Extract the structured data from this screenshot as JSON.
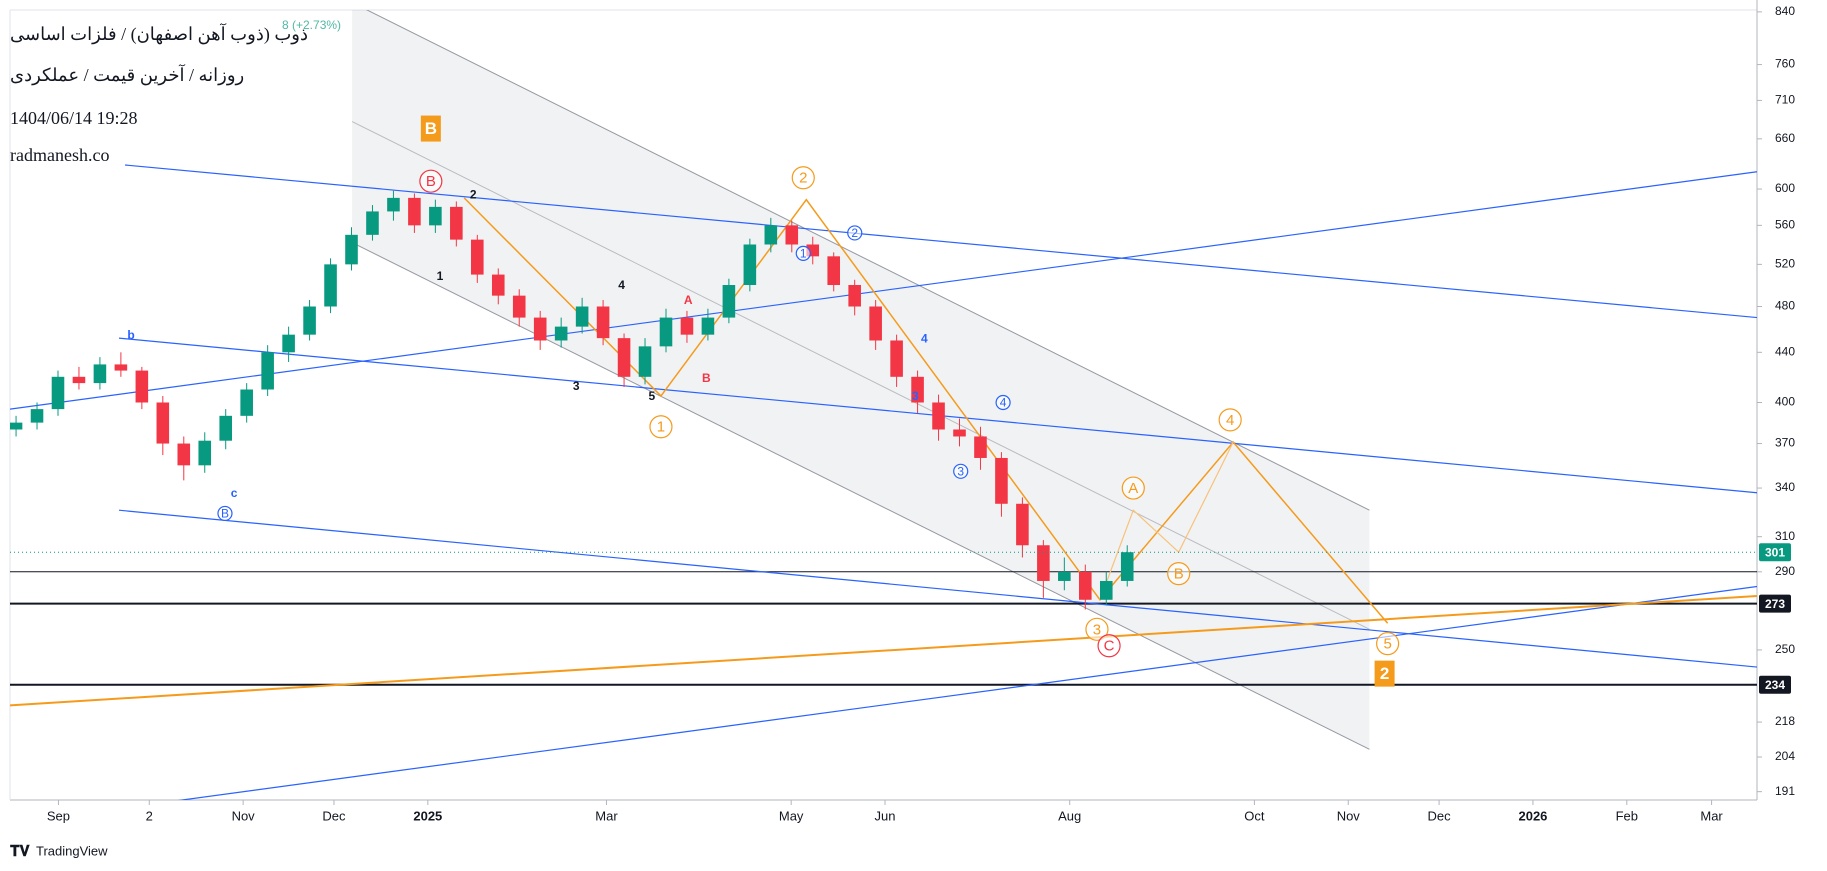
{
  "chart_data": {
    "type": "candlestick",
    "title": "ذوب (ذوب آهن اصفهان) / فلزات اساسی",
    "subtitle": "روزانه / آخرین قیمت / عملکردی",
    "timestamp": "1404/06/14 19:28",
    "watermark": "radmanesh.co",
    "change": "8 (+2.73%)",
    "brand": "TradingView",
    "log_scale": true,
    "grid": false,
    "ylim": [
      188,
      843
    ],
    "yticks": [
      191,
      204,
      218,
      250,
      290,
      310,
      340,
      370,
      400,
      440,
      480,
      520,
      560,
      600,
      660,
      710,
      760,
      840
    ],
    "xlim": [
      "2024-08-16",
      "2026-03-16"
    ],
    "xticks": [
      {
        "value": "2024-09",
        "label": "Sep"
      },
      {
        "value": "2024-10",
        "label": "2"
      },
      {
        "value": "2024-11",
        "label": "Nov"
      },
      {
        "value": "2024-12",
        "label": "Dec"
      },
      {
        "value": "2025-01",
        "label": "2025"
      },
      {
        "value": "2025-03",
        "label": "Mar"
      },
      {
        "value": "2025-05",
        "label": "May"
      },
      {
        "value": "2025-06",
        "label": "Jun"
      },
      {
        "value": "2025-08",
        "label": "Aug"
      },
      {
        "value": "2025-10",
        "label": "Oct"
      },
      {
        "value": "2025-11",
        "label": "Nov"
      },
      {
        "value": "2025-12",
        "label": "Dec"
      },
      {
        "value": "2026-01",
        "label": "2026"
      },
      {
        "value": "2026-02",
        "label": "Feb"
      },
      {
        "value": "2026-03",
        "label": "Mar"
      }
    ],
    "up_color": "#089981",
    "down_color": "#f23645",
    "candles": {
      "start": "2024-08-18",
      "end": "2025-08-20",
      "open": [
        380,
        385,
        395,
        420,
        415,
        430,
        425,
        400,
        370,
        355,
        372,
        390,
        410,
        440,
        455,
        480,
        520,
        550,
        575,
        590,
        560,
        580,
        545,
        510,
        490,
        470,
        450,
        462,
        480,
        452,
        420,
        445,
        470,
        455,
        470,
        500,
        540,
        560,
        540,
        528,
        500,
        480,
        450,
        420,
        400,
        380,
        375,
        360,
        330,
        305,
        285,
        290,
        275,
        285
      ],
      "high": [
        390,
        400,
        425,
        428,
        436,
        440,
        428,
        405,
        375,
        378,
        395,
        415,
        446,
        462,
        486,
        526,
        558,
        582,
        598,
        595,
        588,
        586,
        550,
        516,
        496,
        476,
        470,
        488,
        486,
        456,
        452,
        478,
        476,
        478,
        506,
        546,
        568,
        565,
        548,
        532,
        505,
        486,
        455,
        425,
        406,
        388,
        382,
        364,
        334,
        308,
        298,
        294,
        290,
        305
      ],
      "low": [
        375,
        380,
        390,
        410,
        410,
        420,
        395,
        362,
        345,
        350,
        366,
        385,
        405,
        432,
        450,
        474,
        514,
        544,
        565,
        552,
        552,
        538,
        502,
        482,
        462,
        442,
        444,
        456,
        446,
        412,
        414,
        440,
        448,
        450,
        465,
        494,
        532,
        532,
        520,
        494,
        472,
        442,
        412,
        392,
        372,
        368,
        352,
        322,
        298,
        276,
        280,
        270,
        272,
        282
      ],
      "close": [
        385,
        395,
        420,
        415,
        430,
        425,
        400,
        370,
        355,
        372,
        390,
        410,
        440,
        455,
        480,
        520,
        550,
        575,
        590,
        560,
        580,
        545,
        510,
        490,
        470,
        450,
        462,
        480,
        452,
        420,
        445,
        470,
        455,
        470,
        500,
        540,
        560,
        540,
        528,
        500,
        480,
        450,
        420,
        400,
        380,
        375,
        360,
        330,
        305,
        285,
        290,
        275,
        285,
        301
      ]
    },
    "marked_prices": [
      301,
      273,
      234
    ],
    "hlines": [
      290,
      273,
      234
    ],
    "trend_lines": [
      {
        "color": "#2962ff",
        "points": [
          [
            "2024-08-16",
            395
          ],
          [
            "2026-03-16",
            620
          ]
        ]
      },
      {
        "color": "#2962ff",
        "points": [
          [
            "2024-09-23",
            628
          ],
          [
            "2026-03-16",
            470
          ]
        ]
      },
      {
        "color": "#2962ff",
        "points": [
          [
            "2024-09-21",
            452
          ],
          [
            "2026-03-16",
            337
          ]
        ]
      },
      {
        "color": "#2962ff",
        "points": [
          [
            "2024-09-21",
            326
          ],
          [
            "2026-03-16",
            242
          ]
        ]
      },
      {
        "color": "#2962ff",
        "points": [
          [
            "2024-10-05",
            187
          ],
          [
            "2026-03-16",
            282
          ]
        ]
      },
      {
        "color": "#f59b1c",
        "points": [
          [
            "2024-08-16",
            225
          ],
          [
            "2026-03-16",
            277
          ]
        ]
      }
    ],
    "channel": {
      "color": "#9598a1",
      "upper": [
        [
          "2024-12-07",
          855
        ],
        [
          "2025-11-08",
          326
        ]
      ],
      "middle": [
        [
          "2024-12-07",
          682
        ],
        [
          "2025-11-08",
          260
        ]
      ],
      "lower": [
        [
          "2024-12-07",
          542
        ],
        [
          "2025-11-08",
          207
        ]
      ]
    },
    "wave_path": {
      "color": "#f59b1c",
      "points": [
        [
          "2025-01-13",
          590
        ],
        [
          "2025-03-19",
          405
        ],
        [
          "2025-05-06",
          588
        ],
        [
          "2025-08-11",
          275
        ],
        [
          "2025-09-24",
          371
        ],
        [
          "2025-11-14",
          263
        ]
      ]
    },
    "projection": {
      "color": "#f8c27a",
      "points": [
        [
          "2025-08-11",
          275
        ],
        [
          "2025-08-22",
          326
        ],
        [
          "2025-09-06",
          301
        ],
        [
          "2025-09-24",
          371
        ]
      ]
    },
    "annotations": [
      {
        "text": "B",
        "x": "2025-01-02",
        "y": 673,
        "color": "#f59b1c",
        "style": "box"
      },
      {
        "text": "2",
        "x": "2025-11-13",
        "y": 239,
        "color": "#f59b1c",
        "style": "box"
      },
      {
        "text": "1",
        "x": "2025-03-19",
        "y": 382,
        "color": "#f59b1c",
        "style": "circle"
      },
      {
        "text": "2",
        "x": "2025-05-05",
        "y": 613,
        "color": "#f59b1c",
        "style": "circle"
      },
      {
        "text": "3",
        "x": "2025-08-10",
        "y": 260,
        "color": "#f59b1c",
        "style": "circle"
      },
      {
        "text": "4",
        "x": "2025-09-23",
        "y": 387,
        "color": "#f59b1c",
        "style": "circle"
      },
      {
        "text": "5",
        "x": "2025-11-14",
        "y": 253,
        "color": "#f59b1c",
        "style": "circle"
      },
      {
        "text": "A",
        "x": "2025-08-22",
        "y": 340,
        "color": "#f59b1c",
        "style": "circle"
      },
      {
        "text": "B",
        "x": "2025-09-06",
        "y": 289,
        "color": "#f59b1c",
        "style": "circle"
      },
      {
        "text": "C",
        "x": "2025-08-14",
        "y": 252,
        "color": "#f23645",
        "style": "circle"
      },
      {
        "text": "B",
        "x": "2025-01-02",
        "y": 609,
        "color": "#f23645",
        "style": "circle"
      },
      {
        "text": "b",
        "x": "2024-09-25",
        "y": 455,
        "color": "#2962ff",
        "style": "plain"
      },
      {
        "text": "c",
        "x": "2024-10-29",
        "y": 337,
        "color": "#2962ff",
        "style": "plain"
      },
      {
        "text": "B",
        "x": "2024-10-26",
        "y": 324,
        "color": "#2962ff",
        "style": "circle"
      },
      {
        "text": "1",
        "x": "2025-05-05",
        "y": 531,
        "color": "#2962ff",
        "style": "circle"
      },
      {
        "text": "2",
        "x": "2025-05-22",
        "y": 552,
        "color": "#2962ff",
        "style": "circle"
      },
      {
        "text": "3",
        "x": "2025-06-26",
        "y": 351,
        "color": "#2962ff",
        "style": "circle"
      },
      {
        "text": "4",
        "x": "2025-07-10",
        "y": 400,
        "color": "#2962ff",
        "style": "circle"
      },
      {
        "text": "4",
        "x": "2025-06-14",
        "y": 452,
        "color": "#2962ff",
        "style": "plain"
      },
      {
        "text": "3",
        "x": "2025-06-11",
        "y": 405,
        "color": "#2962ff",
        "style": "plain"
      },
      {
        "text": "1",
        "x": "2025-01-05",
        "y": 509,
        "color": "#131722",
        "style": "plain"
      },
      {
        "text": "2",
        "x": "2025-01-16",
        "y": 594,
        "color": "#131722",
        "style": "plain"
      },
      {
        "text": "3",
        "x": "2025-02-19",
        "y": 413,
        "color": "#131722",
        "style": "plain"
      },
      {
        "text": "4",
        "x": "2025-03-06",
        "y": 500,
        "color": "#131722",
        "style": "plain"
      },
      {
        "text": "5",
        "x": "2025-03-16",
        "y": 405,
        "color": "#131722",
        "style": "plain"
      },
      {
        "text": "A",
        "x": "2025-03-28",
        "y": 486,
        "color": "#f23645",
        "style": "plain"
      },
      {
        "text": "B",
        "x": "2025-04-03",
        "y": 419,
        "color": "#f23645",
        "style": "plain"
      }
    ]
  }
}
